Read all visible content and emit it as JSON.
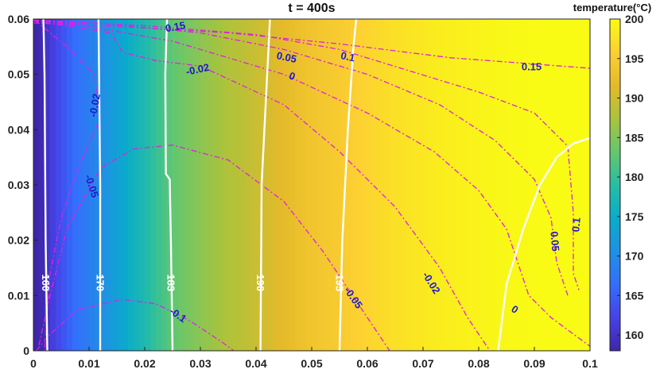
{
  "chart_data": {
    "type": "heatmap",
    "title": "t = 400s",
    "xlim": [
      0,
      0.1
    ],
    "ylim": [
      0,
      0.06
    ],
    "x_ticks": [
      "0",
      "0.01",
      "0.02",
      "0.03",
      "0.04",
      "0.05",
      "0.06",
      "0.07",
      "0.08",
      "0.09",
      "0.1"
    ],
    "y_ticks": [
      "0",
      "0.01",
      "0.02",
      "0.03",
      "0.04",
      "0.05",
      "0.06"
    ],
    "grid": false,
    "colorbar": {
      "title": "temperature(°C)",
      "range": [
        158,
        200
      ],
      "ticks": [
        "160",
        "165",
        "170",
        "175",
        "180",
        "185",
        "190",
        "195",
        "200"
      ],
      "placement": "right"
    },
    "field_profile": {
      "x": [
        0,
        0.001,
        0.003,
        0.007,
        0.012,
        0.018,
        0.025,
        0.033,
        0.041,
        0.048,
        0.055,
        0.063,
        0.072,
        0.082,
        0.092,
        0.1
      ],
      "temperature": [
        157,
        158,
        161,
        166,
        170,
        176,
        183,
        187,
        190,
        193,
        195,
        197,
        198.5,
        199.5,
        200,
        200.5
      ]
    },
    "temperature_contours": [
      {
        "level": 160,
        "label": "160",
        "points": [
          [
            0.0025,
            0.0
          ],
          [
            0.0022,
            0.02
          ],
          [
            0.002,
            0.05
          ],
          [
            0.0018,
            0.06
          ]
        ]
      },
      {
        "level": 170,
        "label": "170",
        "points": [
          [
            0.012,
            0.0
          ],
          [
            0.012,
            0.03
          ],
          [
            0.0118,
            0.05
          ],
          [
            0.0117,
            0.06
          ]
        ]
      },
      {
        "level": 183,
        "label": "183",
        "points": [
          [
            0.025,
            0.0
          ],
          [
            0.0247,
            0.02
          ],
          [
            0.0245,
            0.031
          ],
          [
            0.0238,
            0.032
          ],
          [
            0.0237,
            0.05
          ],
          [
            0.024,
            0.06
          ]
        ]
      },
      {
        "level": 190,
        "label": "190",
        "points": [
          [
            0.0408,
            0.0
          ],
          [
            0.041,
            0.03
          ],
          [
            0.042,
            0.05
          ],
          [
            0.0425,
            0.06
          ]
        ]
      },
      {
        "level": 195,
        "label": "195",
        "points": [
          [
            0.055,
            0.0
          ],
          [
            0.0555,
            0.02
          ],
          [
            0.0565,
            0.04
          ],
          [
            0.0575,
            0.055
          ],
          [
            0.058,
            0.06
          ]
        ]
      },
      {
        "level": 200,
        "label": "",
        "points": [
          [
            0.0835,
            0.0
          ],
          [
            0.085,
            0.012
          ],
          [
            0.088,
            0.022
          ],
          [
            0.091,
            0.03
          ],
          [
            0.094,
            0.035
          ],
          [
            0.097,
            0.0375
          ],
          [
            0.1,
            0.0385
          ]
        ]
      }
    ],
    "stress_contours": [
      {
        "level": 0.15,
        "label": "0.15",
        "points": [
          [
            0.0,
            0.0593
          ],
          [
            0.018,
            0.0585
          ],
          [
            0.035,
            0.0575
          ],
          [
            0.055,
            0.0555
          ],
          [
            0.075,
            0.053
          ],
          [
            0.1,
            0.0511
          ]
        ]
      },
      {
        "level": 0.1,
        "label": "0.1",
        "points": [
          [
            0.0,
            0.0597
          ],
          [
            0.02,
            0.0588
          ],
          [
            0.04,
            0.0572
          ],
          [
            0.055,
            0.0545
          ],
          [
            0.068,
            0.0505
          ],
          [
            0.08,
            0.0468
          ],
          [
            0.09,
            0.043
          ],
          [
            0.096,
            0.037
          ],
          [
            0.097,
            0.025
          ],
          [
            0.097,
            0.014
          ],
          [
            0.098,
            0.011
          ]
        ]
      },
      {
        "level": 0.05,
        "label": "0.05",
        "points": [
          [
            0.0,
            0.0598
          ],
          [
            0.01,
            0.0594
          ],
          [
            0.03,
            0.0575
          ],
          [
            0.045,
            0.0545
          ],
          [
            0.06,
            0.05
          ],
          [
            0.073,
            0.0445
          ],
          [
            0.083,
            0.038
          ],
          [
            0.09,
            0.031
          ],
          [
            0.093,
            0.024
          ],
          [
            0.094,
            0.016
          ],
          [
            0.096,
            0.01
          ]
        ]
      },
      {
        "level": 0,
        "label": "0",
        "points": [
          [
            0.0,
            0.0598
          ],
          [
            0.008,
            0.059
          ],
          [
            0.025,
            0.056
          ],
          [
            0.045,
            0.05
          ],
          [
            0.06,
            0.043
          ],
          [
            0.072,
            0.036
          ],
          [
            0.08,
            0.029
          ],
          [
            0.085,
            0.022
          ],
          [
            0.087,
            0.016
          ],
          [
            0.089,
            0.01
          ],
          [
            0.093,
            0.006
          ],
          [
            0.1,
            0.0008
          ]
        ]
      },
      {
        "level": -0.02,
        "label": "-0.02",
        "points": [
          [
            0.0,
            0.0597
          ],
          [
            0.014,
            0.0575
          ],
          [
            0.016,
            0.054
          ],
          [
            0.022,
            0.0525
          ],
          [
            0.03,
            0.0515
          ],
          [
            0.045,
            0.0445
          ],
          [
            0.055,
            0.036
          ],
          [
            0.065,
            0.026
          ],
          [
            0.073,
            0.015
          ],
          [
            0.078,
            0.006
          ],
          [
            0.082,
            0.0
          ]
        ]
      },
      {
        "level": -0.02,
        "label": "-0.02",
        "points": [
          [
            0.0003,
            0.0598
          ],
          [
            0.006,
            0.055
          ],
          [
            0.011,
            0.05
          ],
          [
            0.012,
            0.042
          ],
          [
            0.008,
            0.033
          ],
          [
            0.005,
            0.024
          ],
          [
            0.003,
            0.014
          ],
          [
            0.002,
            0.0
          ]
        ]
      },
      {
        "level": -0.05,
        "label": "-0.05",
        "points": [
          [
            0.001,
            0.001
          ],
          [
            0.003,
            0.01
          ],
          [
            0.006,
            0.022
          ],
          [
            0.012,
            0.033
          ],
          [
            0.018,
            0.0365
          ],
          [
            0.025,
            0.0372
          ],
          [
            0.035,
            0.0345
          ],
          [
            0.045,
            0.027
          ],
          [
            0.052,
            0.018
          ],
          [
            0.058,
            0.009
          ],
          [
            0.062,
            0.003
          ],
          [
            0.064,
            0.0
          ]
        ]
      },
      {
        "level": -0.1,
        "label": "-0.1",
        "points": [
          [
            0.0005,
            0.0
          ],
          [
            0.003,
            0.003
          ],
          [
            0.008,
            0.0075
          ],
          [
            0.016,
            0.0093
          ],
          [
            0.022,
            0.0085
          ],
          [
            0.028,
            0.0055
          ],
          [
            0.034,
            0.0015
          ],
          [
            0.036,
            0.0
          ]
        ]
      }
    ],
    "temperature_labels": [
      {
        "text": "160",
        "x": 0.0022,
        "y": 0.0123
      },
      {
        "text": "170",
        "x": 0.012,
        "y": 0.0123
      },
      {
        "text": "183",
        "x": 0.0247,
        "y": 0.0123
      },
      {
        "text": "190",
        "x": 0.0408,
        "y": 0.0123
      },
      {
        "text": "195",
        "x": 0.055,
        "y": 0.0123
      }
    ],
    "stress_labels": [
      {
        "text": "0.15",
        "x": 0.0255,
        "y": 0.0586,
        "angle": -10
      },
      {
        "text": "0.05",
        "x": 0.0455,
        "y": 0.0531,
        "angle": 12
      },
      {
        "text": "0.1",
        "x": 0.0565,
        "y": 0.0532,
        "angle": 12
      },
      {
        "text": "0.15",
        "x": 0.0895,
        "y": 0.0514,
        "angle": 0
      },
      {
        "text": "-0.02",
        "x": 0.0295,
        "y": 0.0509,
        "angle": -12
      },
      {
        "text": "0",
        "x": 0.0465,
        "y": 0.0497,
        "angle": 20
      },
      {
        "text": "-0.02",
        "x": 0.011,
        "y": 0.0444,
        "angle": -80
      },
      {
        "text": "-0.05",
        "x": 0.0105,
        "y": 0.0298,
        "angle": 72
      },
      {
        "text": "0.1",
        "x": 0.0975,
        "y": 0.0228,
        "angle": -85
      },
      {
        "text": "0.05",
        "x": 0.0937,
        "y": 0.0198,
        "angle": 85
      },
      {
        "text": "-0.02",
        "x": 0.0715,
        "y": 0.0123,
        "angle": 58
      },
      {
        "text": "-0.05",
        "x": 0.0575,
        "y": 0.0096,
        "angle": 55
      },
      {
        "text": "0",
        "x": 0.0865,
        "y": 0.0075,
        "angle": 35
      },
      {
        "text": "-0.1",
        "x": 0.026,
        "y": 0.0065,
        "angle": 35
      }
    ]
  },
  "styles": {
    "temperature_contour_color": "#ffffff",
    "stress_contour_color": "#e020e0",
    "stress_label_color": "#1c1cc8",
    "axis_color": "#222222",
    "colormap": "parula"
  }
}
